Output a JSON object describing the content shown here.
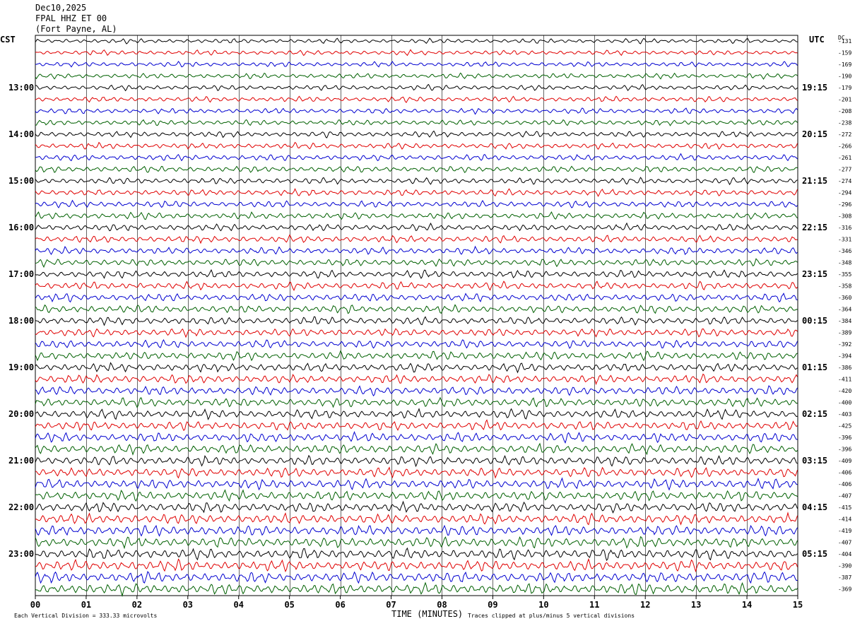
{
  "header": {
    "date": "Dec10,2025",
    "station": "FPAL HHZ ET 00",
    "location": "(Fort Payne, AL)",
    "left_tz": "CST",
    "right_tz": "UTC",
    "dc_label": "DC"
  },
  "footer": {
    "scale_note": "Each Vertical Division =  333.33 microvolts",
    "xlabel": "TIME (MINUTES)",
    "clip_note": "Traces clipped at plus/minus 5 vertical divisions"
  },
  "chart_data": {
    "type": "line",
    "title": "FPAL HHZ ET 00",
    "xlabel": "TIME (MINUTES)",
    "xlim": [
      0,
      15
    ],
    "x_ticks": [
      "00",
      "01",
      "02",
      "03",
      "04",
      "05",
      "06",
      "07",
      "08",
      "09",
      "10",
      "11",
      "12",
      "13",
      "14",
      "15"
    ],
    "left_time_labels": [
      "13:00",
      "14:00",
      "15:00",
      "16:00",
      "17:00",
      "18:00",
      "19:00",
      "20:00",
      "21:00",
      "22:00",
      "23:00"
    ],
    "right_time_labels": [
      "19:15",
      "20:15",
      "21:15",
      "22:15",
      "23:15",
      "00:15",
      "01:15",
      "02:15",
      "03:15",
      "04:15",
      "05:15"
    ],
    "trace_colors": [
      "#000000",
      "#e00000",
      "#0000d0",
      "#006000"
    ],
    "dc_offsets": [
      "-131",
      "-159",
      "-169",
      "-190",
      "-179",
      "-201",
      "-208",
      "-238",
      "-272",
      "-266",
      "-261",
      "-277",
      "-274",
      "-294",
      "-296",
      "-308",
      "-316",
      "-331",
      "-346",
      "-348",
      "-355",
      "-358",
      "-360",
      "-364",
      "-384",
      "-389",
      "-392",
      "-394",
      "-386",
      "-411",
      "-420",
      "-400",
      "-403",
      "-425",
      "-396",
      "-396",
      "-409",
      "-406",
      "-406",
      "-407",
      "-415",
      "-414",
      "-419",
      "-407",
      "-404",
      "-390",
      "-387",
      "-369"
    ],
    "grid": true
  }
}
